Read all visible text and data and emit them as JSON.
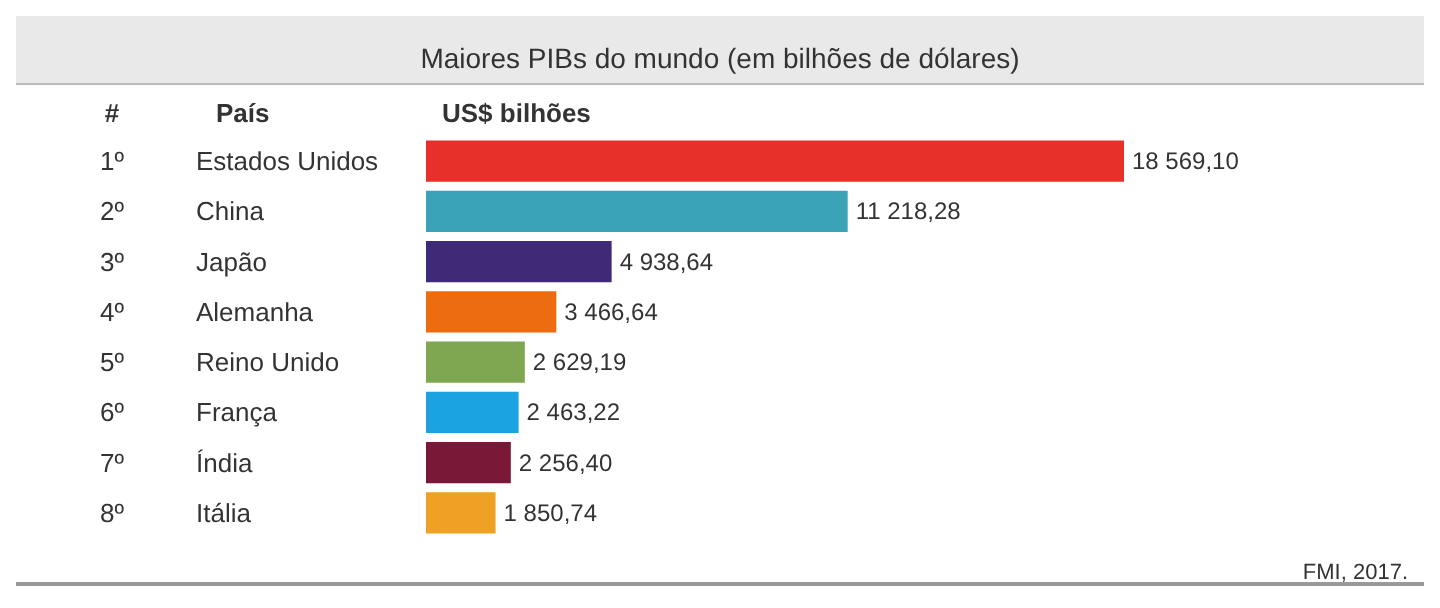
{
  "chart_data": {
    "type": "bar",
    "orientation": "horizontal",
    "title": "Maiores PIBs do mundo (em bilhões de dólares)",
    "categories": [
      "Estados Unidos",
      "China",
      "Japão",
      "Alemanha",
      "Reino Unido",
      "França",
      "Índia",
      "Itália"
    ],
    "values": [
      18569.1,
      11218.28,
      4938.64,
      3466.64,
      2629.19,
      2463.22,
      2256.4,
      1850.74
    ],
    "value_labels": [
      "18 569,10",
      "11 218,28",
      "4 938,64",
      "3 466,64",
      "2 629,19",
      "2 463,22",
      "2 256,40",
      "1 850,74"
    ],
    "colors": [
      "#e8302a",
      "#3ba3b8",
      "#3f2a78",
      "#ec6c0f",
      "#7fa650",
      "#1aa3e0",
      "#7a1838",
      "#eea125"
    ],
    "annotations": [
      "#",
      "País",
      "US$ bilhões",
      "1º",
      "2º",
      "3º",
      "4º",
      "5º",
      "6º",
      "7º",
      "8º",
      "FMI, 2017."
    ]
  }
}
